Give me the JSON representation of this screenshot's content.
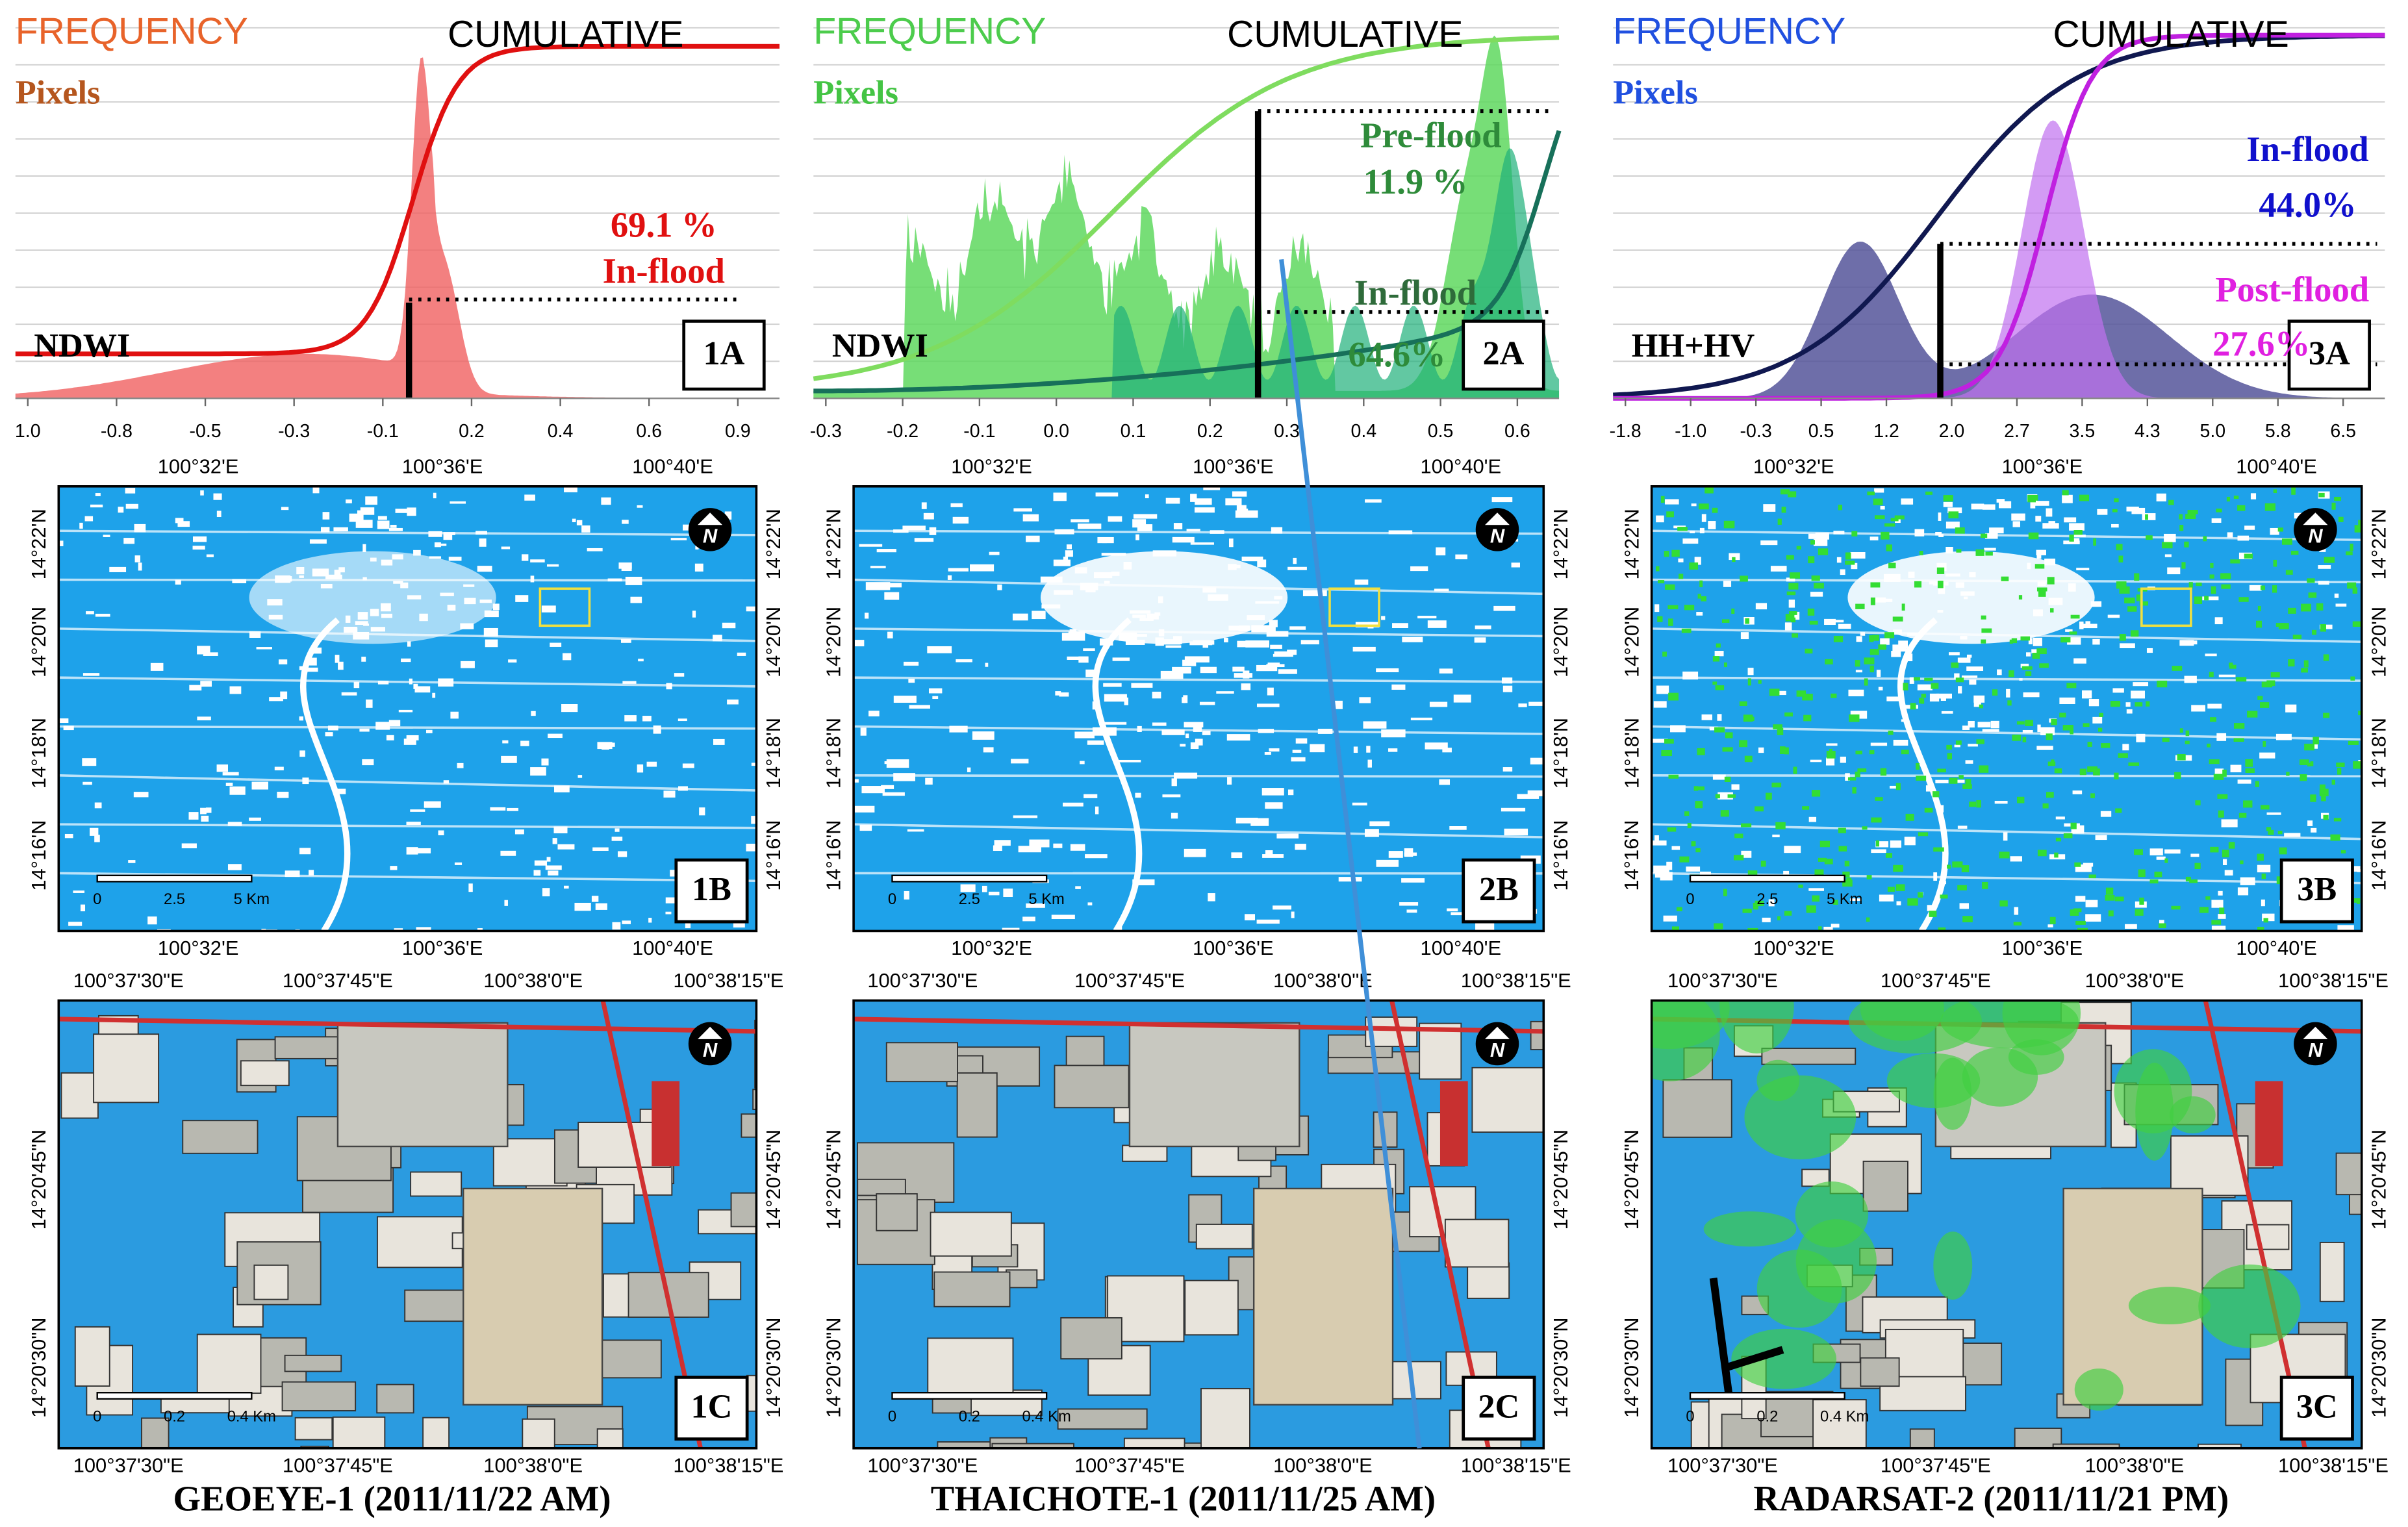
{
  "charts": [
    {
      "frequency": "FREQUENCY",
      "pixels": "Pixels",
      "cumulative": "CUMULATIVE",
      "index": "NDWI",
      "panel": "1A",
      "xticks": [
        "1.0",
        "-0.8",
        "-0.5",
        "-0.3",
        "-0.1",
        "0.2",
        "0.4",
        "0.6",
        "0.9"
      ],
      "annotations": [
        "69.1 %",
        "In-flood"
      ]
    },
    {
      "frequency": "FREQUENCY",
      "pixels": "Pixels",
      "cumulative": "CUMULATIVE",
      "index": "NDWI",
      "panel": "2A",
      "xticks": [
        "-0.3",
        "-0.2",
        "-0.1",
        "0.0",
        "0.1",
        "0.2",
        "0.3",
        "0.4",
        "0.5",
        "0.6"
      ],
      "annotations": [
        "Pre-flood",
        "11.9 %",
        "In-flood",
        "64.6%"
      ]
    },
    {
      "frequency": "FREQUENCY",
      "pixels": "Pixels",
      "cumulative": "CUMULATIVE",
      "index": "HH+HV",
      "panel": "3A",
      "xticks": [
        "-1.8",
        "-1.0",
        "-0.3",
        "0.5",
        "1.2",
        "2.0",
        "2.7",
        "3.5",
        "4.3",
        "5.0",
        "5.8",
        "6.5"
      ],
      "annotations": [
        "In-flood",
        "44.0%",
        "Post-flood",
        "27.6%"
      ]
    }
  ],
  "map_b": {
    "top_ticks": [
      "100°32'E",
      "100°36'E",
      "100°40'E"
    ],
    "side_ticks": [
      "14°22'N",
      "14°20'N",
      "14°18'N",
      "14°16'N"
    ],
    "scale": [
      "0",
      "2.5",
      "5 Km"
    ],
    "panels": [
      "1B",
      "2B",
      "3B"
    ]
  },
  "map_c": {
    "top_ticks": [
      "100°37'30\"E",
      "100°37'45\"E",
      "100°38'0\"E",
      "100°38'15\"E"
    ],
    "side_ticks": [
      "14°20'45\"N",
      "14°20'30\"N"
    ],
    "scale": [
      "0",
      "0.2",
      "0.4 Km"
    ],
    "panels": [
      "1C",
      "2C",
      "3C"
    ]
  },
  "north": "N",
  "captions": [
    "GEOEYE-1 (2011/11/22 AM)",
    "THAICHOTE-1 (2011/11/25 AM)",
    "RADARSAT-2 (2011/11/21 PM)"
  ]
}
